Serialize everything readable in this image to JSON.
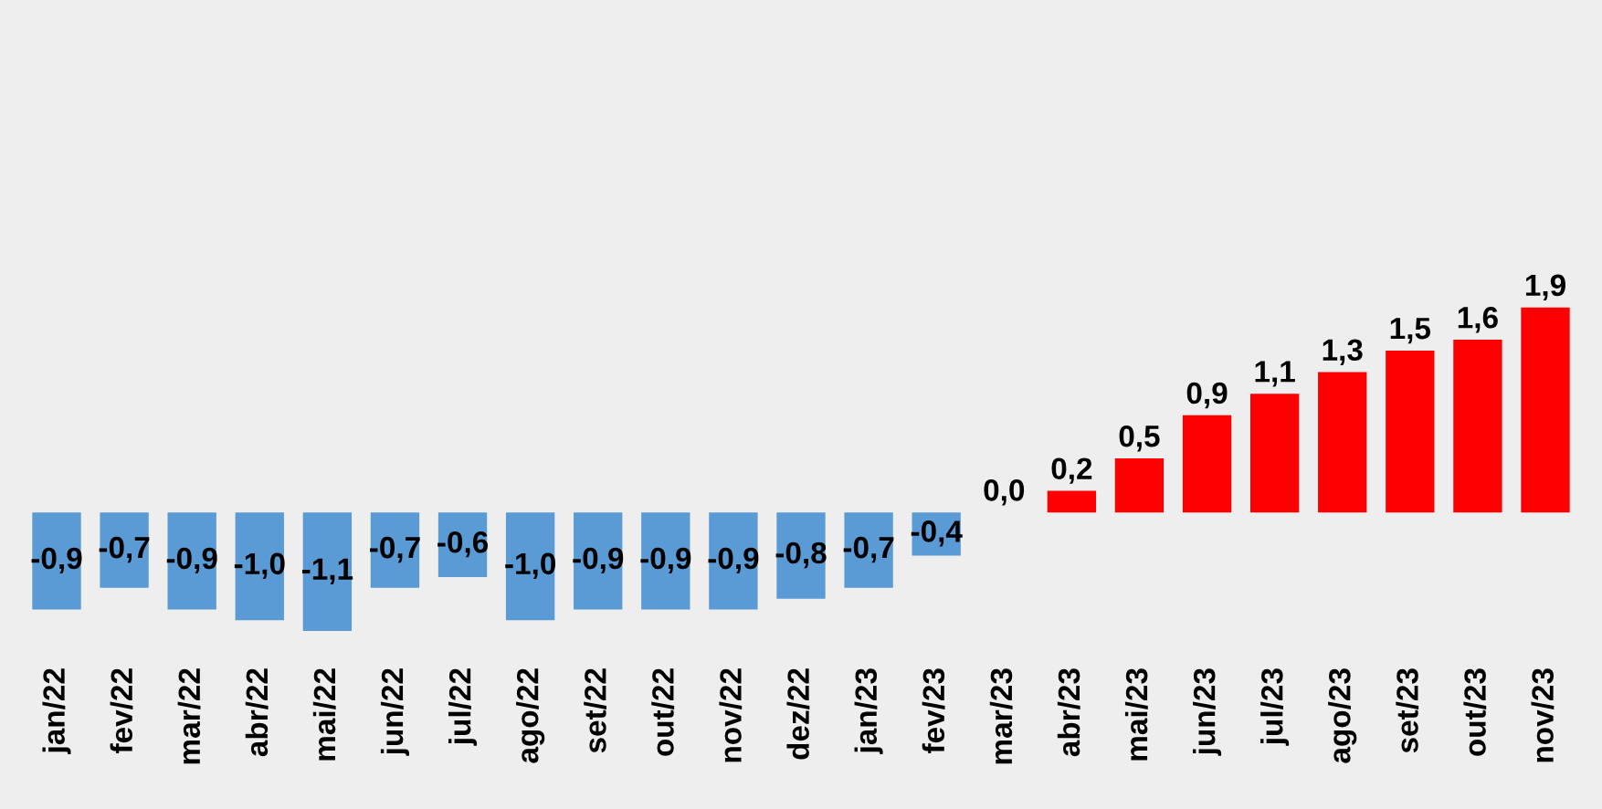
{
  "chart_data": {
    "type": "bar",
    "categories": [
      "jan/22",
      "fev/22",
      "mar/22",
      "abr/22",
      "mai/22",
      "jun/22",
      "jul/22",
      "ago/22",
      "set/22",
      "out/22",
      "nov/22",
      "dez/22",
      "jan/23",
      "fev/23",
      "mar/23",
      "abr/23",
      "mai/23",
      "jun/23",
      "jul/23",
      "ago/23",
      "set/23",
      "out/23",
      "nov/23"
    ],
    "values": [
      -0.9,
      -0.7,
      -0.9,
      -1.0,
      -1.1,
      -0.7,
      -0.6,
      -1.0,
      -0.9,
      -0.9,
      -0.9,
      -0.8,
      -0.7,
      -0.4,
      0.0,
      0.2,
      0.5,
      0.9,
      1.1,
      1.3,
      1.5,
      1.6,
      1.9
    ],
    "colors": [
      "#5b9bd5",
      "#5b9bd5",
      "#5b9bd5",
      "#5b9bd5",
      "#5b9bd5",
      "#5b9bd5",
      "#5b9bd5",
      "#5b9bd5",
      "#5b9bd5",
      "#5b9bd5",
      "#5b9bd5",
      "#5b9bd5",
      "#5b9bd5",
      "#5b9bd5",
      "#5b9bd5",
      "#ff0000",
      "#ff0000",
      "#ff0000",
      "#ff0000",
      "#ff0000",
      "#ff0000",
      "#ff0000",
      "#ff0000"
    ],
    "value_labels": [
      "-0,9",
      "-0,7",
      "-0,9",
      "-1,0",
      "-1,1",
      "-0,7",
      "-0,6",
      "-1,0",
      "-0,9",
      "-0,9",
      "-0,9",
      "-0,8",
      "-0,7",
      "-0,4",
      "0,0",
      "0,2",
      "0,5",
      "0,9",
      "1,1",
      "1,3",
      "1,5",
      "1,6",
      "1,9"
    ],
    "grid": false,
    "legend": false
  }
}
